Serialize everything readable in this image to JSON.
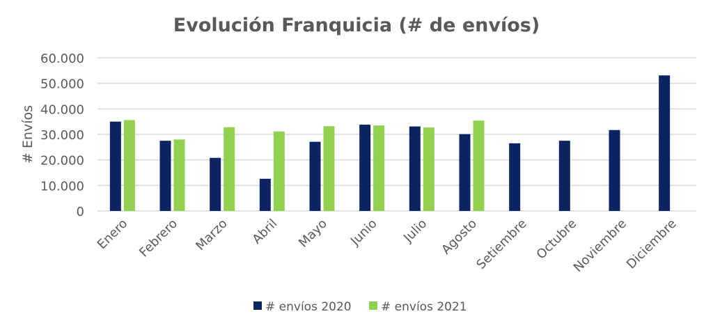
{
  "chart_data": {
    "type": "bar",
    "title": "Evolución Franquicia (# de envíos)",
    "xlabel": "",
    "ylabel": "# Envíos",
    "ylim": [
      0,
      60000
    ],
    "yticks": [
      0,
      10000,
      20000,
      30000,
      40000,
      50000,
      60000
    ],
    "ytick_labels": [
      "0",
      "10.000",
      "20.000",
      "30.000",
      "40.000",
      "50.000",
      "60.000"
    ],
    "grid": true,
    "legend": "bottom",
    "categories": [
      "Enero",
      "Febrero",
      "Marzo",
      "Abril",
      "Mayo",
      "Junio",
      "Julio",
      "Agosto",
      "Setiembre",
      "Octubre",
      "Noviembre",
      "Diciembre"
    ],
    "series": [
      {
        "name": "# envíos 2020",
        "color": "#0c2461",
        "values": [
          35000,
          27500,
          20800,
          12600,
          27100,
          33800,
          33100,
          30100,
          26500,
          27500,
          31700,
          53100
        ]
      },
      {
        "name": "# envíos 2021",
        "color": "#92d050",
        "values": [
          35600,
          28000,
          32800,
          31100,
          33200,
          33500,
          32700,
          35400,
          null,
          null,
          null,
          null
        ]
      }
    ]
  }
}
